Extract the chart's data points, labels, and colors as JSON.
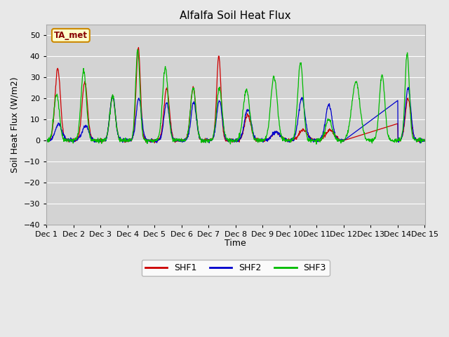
{
  "title": "Alfalfa Soil Heat Flux",
  "ylabel": "Soil Heat Flux (W/m2)",
  "xlabel": "Time",
  "ylim": [
    -40,
    55
  ],
  "xlim": [
    0,
    14
  ],
  "colors": {
    "SHF1": "#cc0000",
    "SHF2": "#0000cc",
    "SHF3": "#00bb00"
  },
  "legend_label": "TA_met",
  "background_color": "#e8e8e8",
  "plot_bg": "#d3d3d3",
  "grid_color": "white",
  "xtick_labels": [
    "Dec 1",
    "Dec 2",
    "Dec 3",
    "Dec 4",
    "Dec 5",
    "Dec 6",
    "Dec 7",
    "Dec 8",
    "Dec 9",
    "Dec 10",
    "Dec 11",
    "Dec 12",
    "Dec 13",
    "Dec 14",
    "Dec 15"
  ],
  "xtick_positions": [
    0,
    1,
    2,
    3,
    4,
    5,
    6,
    7,
    8,
    9,
    10,
    11,
    12,
    13,
    14
  ],
  "ytick_positions": [
    -40,
    -30,
    -20,
    -10,
    0,
    10,
    20,
    30,
    40,
    50
  ]
}
